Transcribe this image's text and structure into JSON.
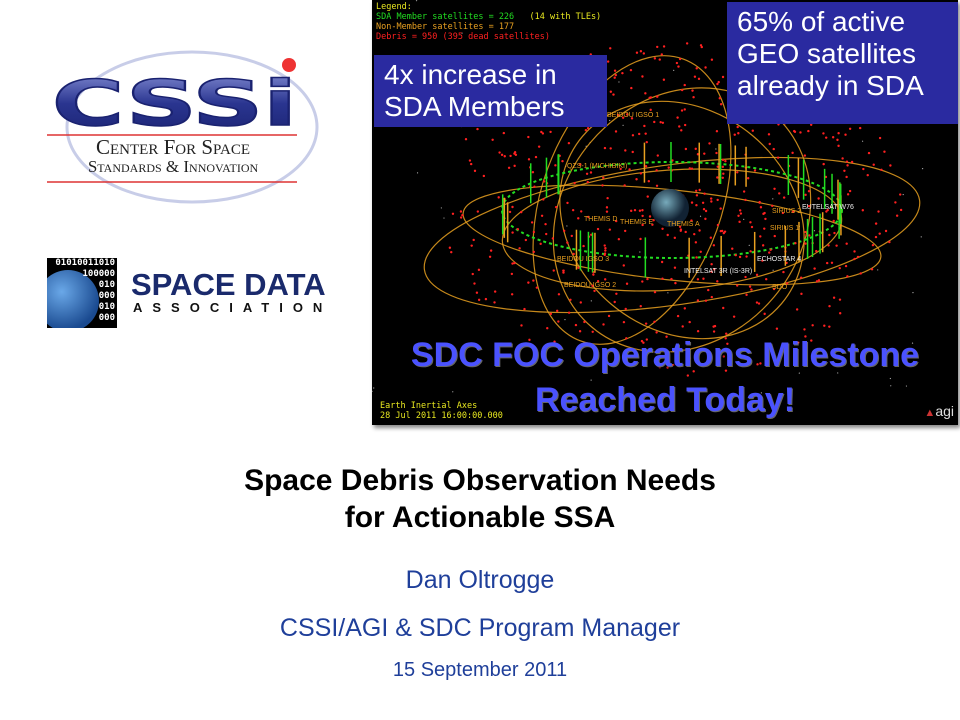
{
  "logos": {
    "cssi": {
      "mark": "CSSi",
      "line1": "Center For Space",
      "line2": "Standards & Innovation"
    },
    "sda": {
      "binary": [
        "01010011010",
        "100000",
        "010",
        "000",
        "010",
        "000"
      ],
      "line1": "SPACE DATA",
      "line2": "ASSOCIATION"
    }
  },
  "visualization": {
    "legend": {
      "title": "Legend:",
      "members": "SDA Member satellites = 226",
      "members_note": "(14 with TLEs)",
      "non_members": "Non-Member satellites = 177",
      "debris": "Debris = 950 (395 dead satellites)"
    },
    "colors": {
      "members": "#22dd22",
      "non_members": "#e8a020",
      "debris": "#ff2020",
      "callout_bg": "#2a2aa0",
      "headline": "#4a52ff"
    },
    "callout_left": "4x increase in SDA Members",
    "callout_right": "65% of active GEO satellites already in SDA",
    "satellite_labels": [
      "BEIDOU IGSO 1",
      "QZS-1 (MICHIBIKI)",
      "THEMIS D",
      "THEMIS E",
      "THEMIS A",
      "SIRIUS 2",
      "EUTELSAT W76",
      "SIRIUS 1",
      "BEIDOU IGSO 3",
      "BEIDOU IGSO 2",
      "INTELSAT 3R (IS-3R)",
      "ECHOSTAR 4",
      "SDO"
    ],
    "headline1": "SDC FOC Operations Milestone",
    "headline2": "Reached Today!",
    "axes": "Earth Inertial Axes",
    "epoch": "28 Jul 2011 16:00:00.000",
    "brand": "agi"
  },
  "slide": {
    "title_line1": "Space Debris Observation Needs",
    "title_line2": "for Actionable SSA",
    "author": "Dan Oltrogge",
    "role": "CSSI/AGI & SDC Program Manager",
    "date": "15 September 2011"
  }
}
